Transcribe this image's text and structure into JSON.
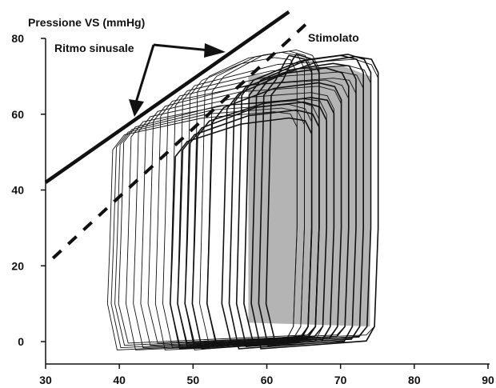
{
  "chart_data": {
    "type": "line",
    "title": "",
    "ylabel": "Pressione VS (mmHg)",
    "xlabel": "",
    "xlim": [
      30,
      90
    ],
    "ylim": [
      0,
      80
    ],
    "x_ticks": [
      "30",
      "40",
      "50",
      "60",
      "70",
      "80",
      "90"
    ],
    "y_ticks": [
      "0",
      "20",
      "40",
      "60",
      "80"
    ],
    "grid": false,
    "legend": "none",
    "annotations": [
      {
        "text": "Ritmo sinusale",
        "arrow_targets": [
          [
            42,
            62
          ],
          [
            57,
            77
          ]
        ]
      },
      {
        "text": "Stimolato"
      }
    ],
    "reference_lines": [
      {
        "name": "Ritmo sinusale",
        "style": "solid",
        "points": [
          [
            30,
            42
          ],
          [
            63,
            87
          ]
        ]
      },
      {
        "name": "Stimolato",
        "style": "dashed",
        "points": [
          [
            31,
            22
          ],
          [
            66,
            85
          ]
        ]
      }
    ],
    "loops": {
      "description_free": true,
      "sinusal_ed_volumes": [
        64,
        65,
        66,
        67,
        68,
        69,
        70,
        71,
        72,
        73,
        74,
        75
      ],
      "sinusal_es_volumes": [
        38.5,
        39,
        39.5,
        40,
        41,
        42,
        43,
        44,
        45,
        46,
        47,
        48,
        49,
        50,
        51,
        52
      ],
      "paced_ed_volumes": [
        66,
        67,
        68,
        69,
        70,
        71,
        72,
        73,
        74,
        75
      ],
      "paced_es_volumes": [
        47,
        48,
        49,
        50,
        52,
        54,
        55,
        56,
        57,
        58,
        59,
        60
      ]
    },
    "colors": {
      "ink": "#111111",
      "shade": "#777777"
    }
  }
}
